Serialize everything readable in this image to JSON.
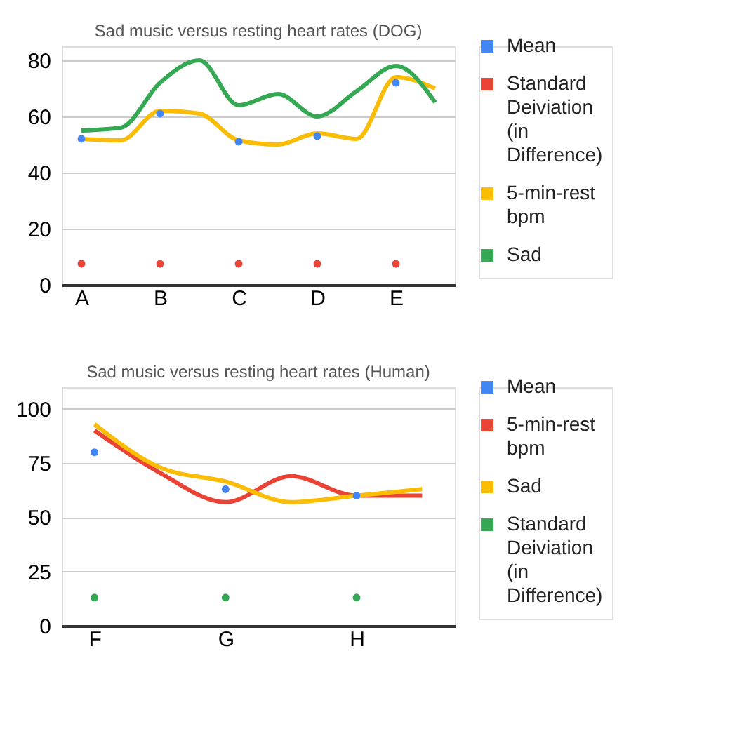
{
  "chart_data": [
    {
      "type": "line",
      "title": "Sad music versus resting heart rates (DOG)",
      "categories": [
        "A",
        null,
        "B",
        null,
        "C",
        null,
        "D",
        null,
        "E",
        null
      ],
      "ylim": [
        0,
        85
      ],
      "yticks": [
        0,
        20,
        40,
        60,
        80
      ],
      "grid": "y",
      "legend": "top right",
      "series": [
        {
          "name": "Mean",
          "type": "scatter",
          "color": "#4285f4",
          "values": [
            52,
            null,
            61,
            null,
            51,
            null,
            53,
            null,
            72,
            null
          ]
        },
        {
          "name": "Standard Deiviation (in Difference)",
          "type": "scatter",
          "color": "#ea4335",
          "values": [
            7.5,
            null,
            7.5,
            null,
            7.5,
            null,
            7.5,
            null,
            7.5,
            null
          ]
        },
        {
          "name": "5-min-rest bpm",
          "type": "line",
          "color": "#fbbc04",
          "values": [
            52,
            51.5,
            62,
            61,
            51.5,
            50,
            54,
            52,
            74,
            70
          ]
        },
        {
          "name": "Sad",
          "type": "line",
          "color": "#34a853",
          "values": [
            55,
            56,
            72,
            80,
            64,
            68,
            60,
            69,
            78,
            65
          ]
        }
      ]
    },
    {
      "type": "line",
      "title": "Sad music versus resting heart rates (Human)",
      "categories": [
        "F",
        null,
        "G",
        null,
        "H",
        null
      ],
      "ylim": [
        0,
        110
      ],
      "yticks": [
        0,
        25,
        50,
        75,
        100
      ],
      "grid": "y",
      "legend": "top right",
      "series": [
        {
          "name": "Mean",
          "type": "scatter",
          "color": "#4285f4",
          "values": [
            80,
            null,
            63,
            null,
            60,
            null
          ]
        },
        {
          "name": "5-min-rest bpm",
          "type": "line",
          "color": "#ea4335",
          "values": [
            90,
            70.5,
            57,
            69,
            60,
            60
          ]
        },
        {
          "name": "Sad",
          "type": "line",
          "color": "#fbbc04",
          "values": [
            93,
            73,
            66.5,
            57,
            60,
            63
          ]
        },
        {
          "name": "Standard Deiviation (in Difference)",
          "type": "scatter",
          "color": "#34a853",
          "values": [
            13,
            null,
            13,
            null,
            13,
            null
          ]
        }
      ]
    }
  ]
}
